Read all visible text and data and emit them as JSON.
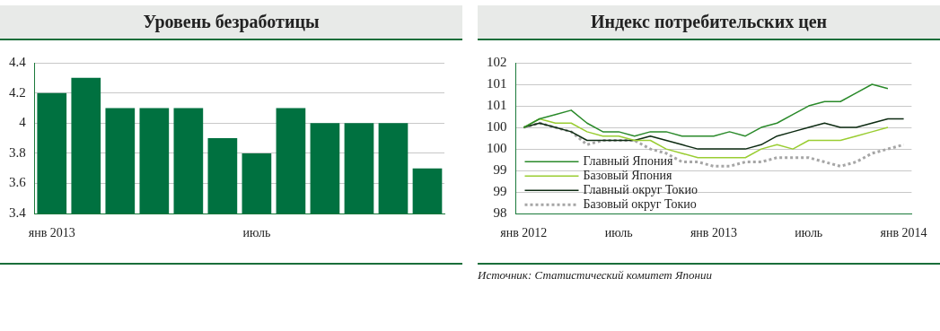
{
  "chart_data": [
    {
      "type": "bar",
      "title": "Уровень безработицы",
      "categories": [
        "янв 2013",
        null,
        null,
        null,
        null,
        null,
        "июль",
        null,
        null,
        null,
        null,
        null
      ],
      "values": [
        4.2,
        4.3,
        4.1,
        4.1,
        4.1,
        3.9,
        3.8,
        4.1,
        4.0,
        4.0,
        4.0,
        3.7
      ],
      "color": "#007140",
      "ylim": [
        3.4,
        4.4
      ],
      "yticks": [
        3.4,
        3.6,
        3.8,
        4,
        4.2,
        4.4
      ],
      "grid": "y"
    },
    {
      "type": "line",
      "title": "Индекс потребительских цен",
      "categories": [
        "янв 2012",
        null,
        null,
        null,
        null,
        null,
        "июль",
        null,
        null,
        null,
        null,
        null,
        "янв 2013",
        null,
        null,
        null,
        null,
        null,
        "июль",
        null,
        null,
        null,
        null,
        null,
        "янв 2014"
      ],
      "series": [
        {
          "name": "Главный Япония",
          "color": "#2a8a2a",
          "line_style": "solid",
          "values": [
            100.0,
            100.2,
            100.3,
            100.4,
            100.1,
            99.9,
            99.9,
            99.8,
            99.9,
            99.9,
            99.8,
            99.8,
            99.8,
            99.9,
            99.8,
            100.0,
            100.1,
            100.3,
            100.5,
            100.6,
            100.6,
            100.8,
            101.0,
            100.9,
            null
          ]
        },
        {
          "name": "Базовый Япония",
          "color": "#9acd32",
          "line_style": "solid",
          "values": [
            100.0,
            100.2,
            100.1,
            100.1,
            99.9,
            99.8,
            99.8,
            99.7,
            99.7,
            99.5,
            99.4,
            99.3,
            99.3,
            99.3,
            99.3,
            99.5,
            99.6,
            99.5,
            99.7,
            99.7,
            99.7,
            99.8,
            99.9,
            100.0,
            null
          ]
        },
        {
          "name": "Главный округ Токио",
          "color": "#0d2b12",
          "line_style": "solid",
          "values": [
            100.0,
            100.1,
            100.0,
            99.9,
            99.7,
            99.7,
            99.7,
            99.7,
            99.8,
            99.7,
            99.6,
            99.5,
            99.5,
            99.5,
            99.5,
            99.6,
            99.8,
            99.9,
            100.0,
            100.1,
            100.0,
            100.0,
            100.1,
            100.2,
            100.2
          ]
        },
        {
          "name": "Базовый округ Токио",
          "color": "#a6a6a6",
          "line_style": "dotted",
          "values": [
            100.0,
            100.1,
            100.0,
            99.9,
            99.6,
            99.7,
            99.7,
            99.7,
            99.5,
            99.4,
            99.2,
            99.2,
            99.1,
            99.1,
            99.2,
            99.2,
            99.3,
            99.3,
            99.3,
            99.2,
            99.1,
            99.2,
            99.4,
            99.5,
            99.6
          ]
        }
      ],
      "ylim": [
        98,
        101.5
      ],
      "yticks": [
        98,
        {
          "value": 98.5,
          "label": "99"
        },
        99,
        {
          "value": 99.5,
          "label": "100"
        },
        100,
        {
          "value": 100.5,
          "label": "101"
        },
        101,
        {
          "value": 101.5,
          "label": "102"
        }
      ],
      "grid": "y",
      "legend": "bottom left",
      "marker": "none",
      "annotations": [
        "Источник: Статистический комитет Японии"
      ]
    }
  ]
}
